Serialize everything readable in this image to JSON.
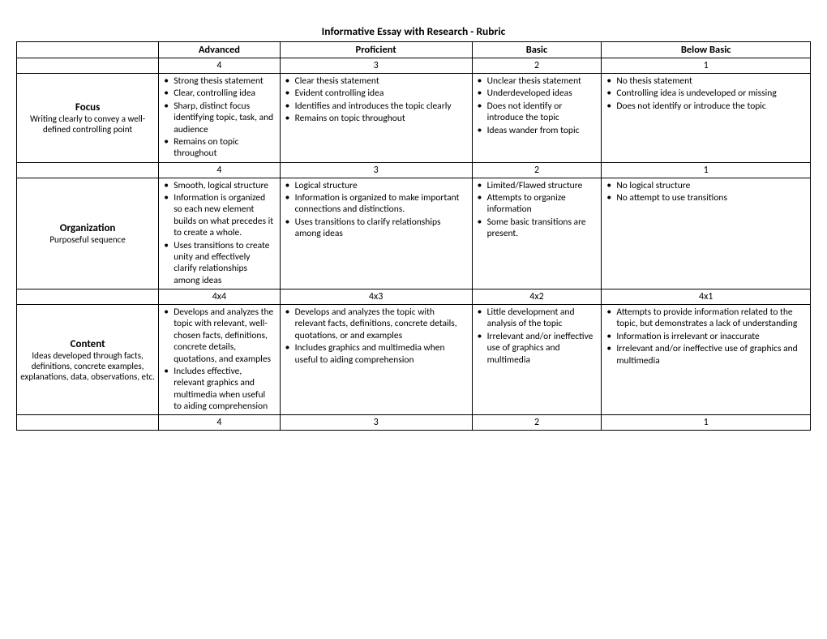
{
  "title": "Informative Essay with Research - Rubric",
  "columns": {
    "advanced": "Advanced",
    "proficient": "Proficient",
    "basic": "Basic",
    "below": "Below Basic"
  },
  "score_header": {
    "advanced": "4",
    "proficient": "3",
    "basic": "2",
    "below": "1"
  },
  "rows": [
    {
      "key": "focus",
      "category_title": "Focus",
      "category_sub": "Writing clearly to convey a well-defined controlling point",
      "advanced": [
        "Strong thesis statement",
        "Clear, controlling idea",
        "Sharp, distinct focus identifying topic, task, and audience",
        "Remains on topic throughout"
      ],
      "proficient": [
        "Clear thesis statement",
        "Evident controlling idea",
        "Identifies and introduces the topic clearly",
        "Remains on topic throughout"
      ],
      "basic": [
        "Unclear thesis statement",
        "Underdeveloped ideas",
        "Does not identify or introduce the topic",
        "Ideas wander from topic"
      ],
      "below": [
        "No thesis statement",
        "Controlling idea is undeveloped or missing",
        "Does not identify or introduce the topic"
      ],
      "score": {
        "advanced": "4",
        "proficient": "3",
        "basic": "2",
        "below": "1"
      }
    },
    {
      "key": "organization",
      "category_title": "Organization",
      "category_sub": "Purposeful sequence",
      "advanced": [
        "Smooth, logical structure",
        "Information is organized so each new element builds on what precedes it to create a whole.",
        "Uses transitions to create unity and effectively clarify relationships among ideas"
      ],
      "proficient": [
        "Logical structure",
        "Information is organized to make important connections and distinctions.",
        "Uses transitions to clarify relationships among ideas"
      ],
      "basic": [
        "Limited/Flawed structure",
        "Attempts to organize information",
        "Some basic transitions are present."
      ],
      "below": [
        "No logical structure",
        "No attempt to use transitions"
      ],
      "score": {
        "advanced": "4x4",
        "proficient": "4x3",
        "basic": "4x2",
        "below": "4x1"
      }
    },
    {
      "key": "content",
      "category_title": "Content",
      "category_sub": "Ideas developed through facts, definitions, concrete examples, explanations, data, observations, etc.",
      "advanced": [
        "Develops and analyzes the topic with relevant, well-chosen facts, definitions, concrete details, quotations, and examples",
        "Includes effective, relevant graphics and multimedia when useful to aiding comprehension"
      ],
      "proficient": [
        "Develops and analyzes the topic with relevant facts, definitions, concrete details, quotations, or and examples",
        "Includes graphics and multimedia when useful to aiding comprehension"
      ],
      "basic": [
        "Little development and analysis of the topic",
        "Irrelevant and/or ineffective use of graphics and multimedia"
      ],
      "below": [
        "Attempts to provide information related to the topic, but demonstrates a lack of understanding",
        "Information is irrelevant or inaccurate",
        "Irrelevant and/or ineffective use of graphics and multimedia"
      ],
      "score": {
        "advanced": "4",
        "proficient": "3",
        "basic": "2",
        "below": "1"
      }
    }
  ]
}
